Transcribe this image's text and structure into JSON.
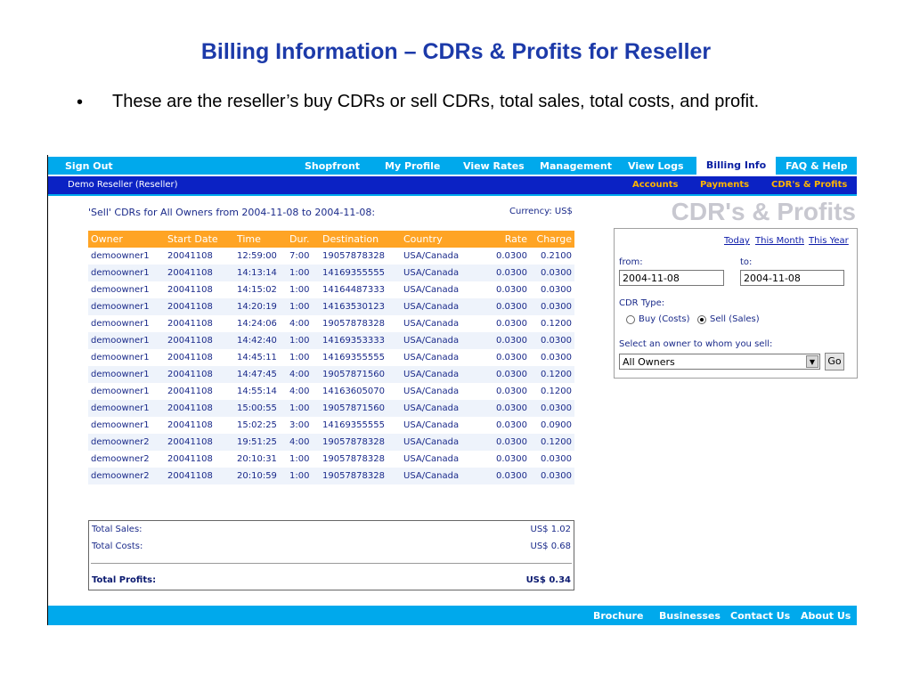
{
  "slide": {
    "title": "Billing Information – CDRs & Profits for Reseller",
    "bullet": "•",
    "bullet_text": "These are the reseller’s buy CDRs or sell CDRs, total sales, total costs, and profit."
  },
  "topnav": {
    "sign_out": "Sign Out",
    "items": [
      "Shopfront",
      "My Profile",
      "View Rates",
      "Management",
      "View Logs",
      "Billing Info",
      "FAQ & Help"
    ]
  },
  "subnav": {
    "user": "Demo Reseller  (Reseller)",
    "items": [
      "Accounts",
      "Payments",
      "CDR's & Profits"
    ]
  },
  "report": {
    "heading": "'Sell' CDRs for All Owners from 2004-11-08 to 2004-11-08:",
    "currency": "Currency: US$",
    "columns": [
      "Owner",
      "Start Date",
      "Time",
      "Dur.",
      "Destination",
      "Country",
      "Rate",
      "Charge"
    ],
    "rows": [
      [
        "demoowner1",
        "20041108",
        "12:59:00",
        "7:00",
        "19057878328",
        "USA/Canada",
        "0.0300",
        "0.2100"
      ],
      [
        "demoowner1",
        "20041108",
        "14:13:14",
        "1:00",
        "14169355555",
        "USA/Canada",
        "0.0300",
        "0.0300"
      ],
      [
        "demoowner1",
        "20041108",
        "14:15:02",
        "1:00",
        "14164487333",
        "USA/Canada",
        "0.0300",
        "0.0300"
      ],
      [
        "demoowner1",
        "20041108",
        "14:20:19",
        "1:00",
        "14163530123",
        "USA/Canada",
        "0.0300",
        "0.0300"
      ],
      [
        "demoowner1",
        "20041108",
        "14:24:06",
        "4:00",
        "19057878328",
        "USA/Canada",
        "0.0300",
        "0.1200"
      ],
      [
        "demoowner1",
        "20041108",
        "14:42:40",
        "1:00",
        "14169353333",
        "USA/Canada",
        "0.0300",
        "0.0300"
      ],
      [
        "demoowner1",
        "20041108",
        "14:45:11",
        "1:00",
        "14169355555",
        "USA/Canada",
        "0.0300",
        "0.0300"
      ],
      [
        "demoowner1",
        "20041108",
        "14:47:45",
        "4:00",
        "19057871560",
        "USA/Canada",
        "0.0300",
        "0.1200"
      ],
      [
        "demoowner1",
        "20041108",
        "14:55:14",
        "4:00",
        "14163605070",
        "USA/Canada",
        "0.0300",
        "0.1200"
      ],
      [
        "demoowner1",
        "20041108",
        "15:00:55",
        "1:00",
        "19057871560",
        "USA/Canada",
        "0.0300",
        "0.0300"
      ],
      [
        "demoowner1",
        "20041108",
        "15:02:25",
        "3:00",
        "14169355555",
        "USA/Canada",
        "0.0300",
        "0.0900"
      ],
      [
        "demoowner2",
        "20041108",
        "19:51:25",
        "4:00",
        "19057878328",
        "USA/Canada",
        "0.0300",
        "0.1200"
      ],
      [
        "demoowner2",
        "20041108",
        "20:10:31",
        "1:00",
        "19057878328",
        "USA/Canada",
        "0.0300",
        "0.0300"
      ],
      [
        "demoowner2",
        "20041108",
        "20:10:59",
        "1:00",
        "19057878328",
        "USA/Canada",
        "0.0300",
        "0.0300"
      ]
    ]
  },
  "totals": {
    "sales_label": "Total Sales:",
    "sales_value": "US$ 1.02",
    "costs_label": "Total Costs:",
    "costs_value": "US$ 0.68",
    "profits_label": "Total Profits:",
    "profits_value": "US$ 0.34"
  },
  "sidebar": {
    "brand": "CDR's & Profits",
    "quick_links": [
      "Today",
      "This Month",
      "This Year"
    ],
    "from_label": "from:",
    "from_value": "2004-11-08",
    "to_label": "to:",
    "to_value": "2004-11-08",
    "cdr_type_label": "CDR Type:",
    "buy_label": "Buy (Costs)",
    "sell_label": "Sell (Sales)",
    "selected_type": "Sell (Sales)",
    "owner_label": "Select an owner to whom you sell:",
    "owner_value": "All Owners",
    "go_label": "Go"
  },
  "footer": {
    "items": [
      "Brochure",
      "Businesses",
      "Contact Us",
      "About Us"
    ]
  },
  "colors": {
    "title": "#1c3aa9",
    "nav_bar": "#00a9ec",
    "sub_nav": "#0b22c4",
    "sub_nav_link": "#ffb400",
    "table_header": "#ffa424",
    "row_alt": "#eef3fb"
  },
  "icons": {
    "dropdown": "chevron-down-icon"
  }
}
